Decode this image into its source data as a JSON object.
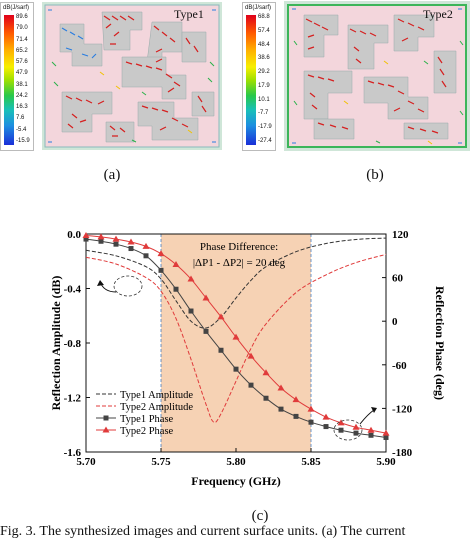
{
  "panel_a": {
    "label": "Type1",
    "caption": "(a)",
    "colorbar_unit": "dB(J/sarf)",
    "colorbar_ticks": [
      "89.6",
      "79.0",
      "71.4",
      "65.2",
      "57.6",
      "47.9",
      "38.1",
      "24.2",
      "16.3",
      "7.6",
      "-5.4",
      "-15.9"
    ]
  },
  "panel_b": {
    "label": "Type2",
    "caption": "(b)",
    "colorbar_unit": "dB(J/sarf)",
    "colorbar_ticks": [
      "68.8",
      "57.4",
      "48.4",
      "38.6",
      "29.2",
      "17.9",
      "10.1",
      "-7.7",
      "-17.9",
      "-27.4"
    ]
  },
  "panel_c": {
    "caption": "(c)"
  },
  "chart_data": {
    "type": "line",
    "xlabel": "Frequency (GHz)",
    "ylabel": "Reflection Amplitude (dB)",
    "y2label": "Reflection Phase (deg)",
    "xlim": [
      5.7,
      5.9
    ],
    "ylim": [
      -1.6,
      0.0
    ],
    "y2lim": [
      -180,
      120
    ],
    "xticks": [
      "5.70",
      "5.75",
      "5.80",
      "5.85",
      "5.90"
    ],
    "yticks": [
      "0.0",
      "-0.4",
      "-0.8",
      "-1.2",
      "-1.6"
    ],
    "y2ticks": [
      "120",
      "60",
      "0",
      "-60",
      "-120",
      "-180"
    ],
    "shaded_band": [
      5.75,
      5.85
    ],
    "annotation_title": "Phase Difference:",
    "annotation_formula": "|ΔP1 - ΔP2| = 20 deg",
    "series": [
      {
        "name": "Type1 Amplitude",
        "axis": "left",
        "style": "dashed",
        "color": "#333333",
        "x": [
          5.7,
          5.72,
          5.74,
          5.75,
          5.76,
          5.77,
          5.78,
          5.79,
          5.8,
          5.81,
          5.82,
          5.84,
          5.86,
          5.88,
          5.9
        ],
        "y": [
          -0.12,
          -0.16,
          -0.24,
          -0.33,
          -0.49,
          -0.64,
          -0.69,
          -0.61,
          -0.47,
          -0.34,
          -0.24,
          -0.13,
          -0.07,
          -0.04,
          -0.03
        ]
      },
      {
        "name": "Type2 Amplitude",
        "axis": "left",
        "style": "dashed",
        "color": "#e03b3b",
        "x": [
          5.7,
          5.72,
          5.74,
          5.75,
          5.76,
          5.77,
          5.78,
          5.785,
          5.79,
          5.8,
          5.81,
          5.82,
          5.84,
          5.86,
          5.88,
          5.9
        ],
        "y": [
          -0.17,
          -0.22,
          -0.32,
          -0.42,
          -0.62,
          -0.92,
          -1.25,
          -1.38,
          -1.32,
          -1.08,
          -0.84,
          -0.66,
          -0.43,
          -0.3,
          -0.21,
          -0.15
        ]
      },
      {
        "name": "Type1 Phase",
        "axis": "right",
        "style": "solid-square",
        "color": "#444444",
        "x": [
          5.7,
          5.71,
          5.72,
          5.73,
          5.74,
          5.75,
          5.76,
          5.77,
          5.78,
          5.79,
          5.8,
          5.81,
          5.82,
          5.83,
          5.84,
          5.85,
          5.86,
          5.87,
          5.88,
          5.89,
          5.9
        ],
        "y": [
          113,
          110,
          106,
          100,
          90,
          70,
          44,
          14,
          -14,
          -40,
          -66,
          -88,
          -106,
          -121,
          -131,
          -139,
          -145,
          -150,
          -154,
          -157,
          -160
        ]
      },
      {
        "name": "Type2 Phase",
        "axis": "right",
        "style": "solid-triangle",
        "color": "#e03b3b",
        "x": [
          5.7,
          5.71,
          5.72,
          5.73,
          5.74,
          5.75,
          5.76,
          5.77,
          5.78,
          5.79,
          5.8,
          5.81,
          5.82,
          5.83,
          5.84,
          5.85,
          5.86,
          5.87,
          5.88,
          5.89,
          5.9
        ],
        "y": [
          118,
          116,
          113,
          109,
          103,
          93,
          78,
          58,
          32,
          6,
          -22,
          -48,
          -71,
          -92,
          -108,
          -121,
          -132,
          -140,
          -146,
          -150,
          -154
        ]
      }
    ]
  },
  "fig_caption": "Fig. 3.   The synthesized images and current surface units. (a) The current"
}
